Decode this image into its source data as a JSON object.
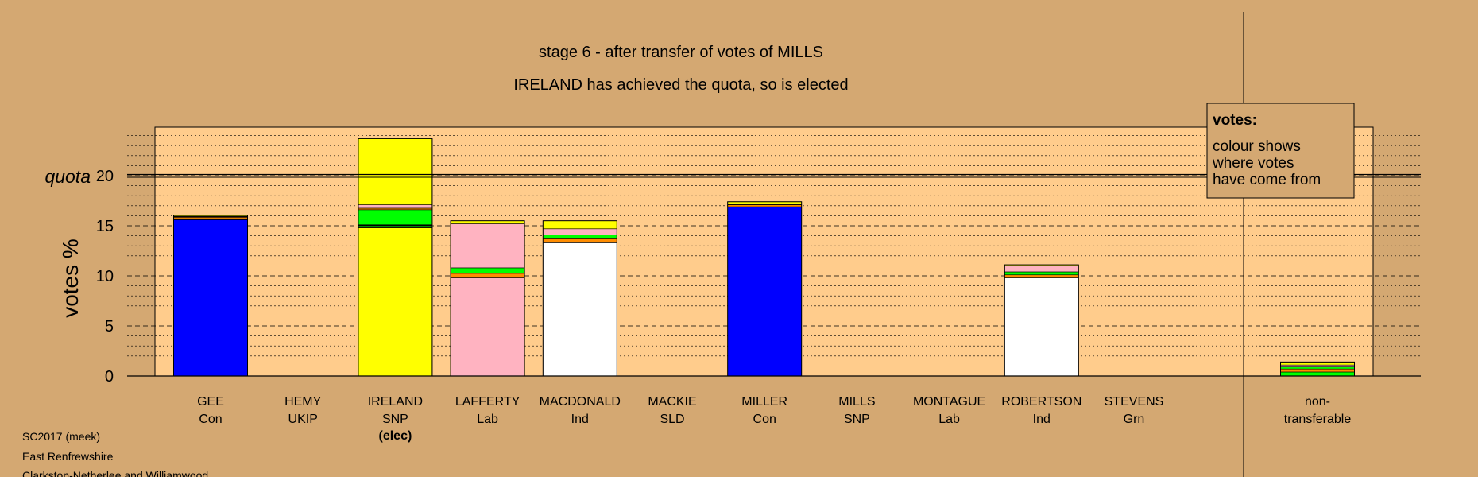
{
  "colors": {
    "background": "#d4a872",
    "plot_background": "#ffcc8c",
    "Con": "#0000ff",
    "SNP": "#ffff00",
    "Lab": "#ffb3c1",
    "Ind": "#ffffff",
    "Grn": "#00ff00",
    "SLD": "#ff8c00",
    "UKIP": "#a020f0",
    "stripe": "#000000"
  },
  "chart_data": {
    "type": "bar",
    "title": "stage 6 - after transfer of votes of MILLS",
    "subtitle": "IRELAND has achieved the quota, so is elected",
    "ylabel": "votes %",
    "ylim": [
      0,
      24
    ],
    "yticks": [
      0,
      5,
      10,
      15,
      20
    ],
    "quota": 20,
    "quota_label": "quota",
    "grid": "dashed every 5, dotted every 1",
    "legend": {
      "title": "votes:",
      "lines": [
        "colour shows",
        "where votes",
        "have come from"
      ],
      "position": "top-right"
    },
    "candidates": [
      {
        "name": "GEE",
        "party": "Con",
        "note": "",
        "segments": [
          {
            "from": "Con",
            "value": 15.6
          },
          {
            "from": "stripe",
            "value": 0.1
          },
          {
            "from": "SLD",
            "value": 0.15
          },
          {
            "from": "stripe",
            "value": 0.1
          },
          {
            "from": "SNP",
            "value": 0.1
          }
        ]
      },
      {
        "name": "HEMY",
        "party": "UKIP",
        "note": "",
        "segments": []
      },
      {
        "name": "IRELAND",
        "party": "SNP",
        "note": "(elec)",
        "segments": [
          {
            "from": "SNP",
            "value": 14.8
          },
          {
            "from": "stripe",
            "value": 0.1
          },
          {
            "from": "Grn",
            "value": 0.1
          },
          {
            "from": "stripe",
            "value": 0.1
          },
          {
            "from": "Grn",
            "value": 1.5
          },
          {
            "from": "SLD",
            "value": 0.15
          },
          {
            "from": "Lab",
            "value": 0.35
          },
          {
            "from": "SNP",
            "value": 6.6
          }
        ]
      },
      {
        "name": "LAFFERTY",
        "party": "Lab",
        "note": "",
        "segments": [
          {
            "from": "Lab",
            "value": 9.8
          },
          {
            "from": "SLD",
            "value": 0.45
          },
          {
            "from": "Grn",
            "value": 0.55
          },
          {
            "from": "Lab",
            "value": 4.4
          },
          {
            "from": "SNP",
            "value": 0.3
          }
        ]
      },
      {
        "name": "MACDONALD",
        "party": "Ind",
        "note": "",
        "segments": [
          {
            "from": "Ind",
            "value": 13.3
          },
          {
            "from": "SLD",
            "value": 0.4
          },
          {
            "from": "Grn",
            "value": 0.4
          },
          {
            "from": "Lab",
            "value": 0.6
          },
          {
            "from": "SNP",
            "value": 0.8
          }
        ]
      },
      {
        "name": "MACKIE",
        "party": "SLD",
        "note": "",
        "segments": []
      },
      {
        "name": "MILLER",
        "party": "Con",
        "note": "",
        "segments": [
          {
            "from": "Con",
            "value": 16.9
          },
          {
            "from": "SLD",
            "value": 0.2
          },
          {
            "from": "stripe",
            "value": 0.1
          },
          {
            "from": "SNP",
            "value": 0.2
          }
        ]
      },
      {
        "name": "MILLS",
        "party": "SNP",
        "note": "",
        "segments": []
      },
      {
        "name": "MONTAGUE",
        "party": "Lab",
        "note": "",
        "segments": []
      },
      {
        "name": "ROBERTSON",
        "party": "Ind",
        "note": "",
        "segments": [
          {
            "from": "Ind",
            "value": 9.8
          },
          {
            "from": "SLD",
            "value": 0.3
          },
          {
            "from": "Grn",
            "value": 0.3
          },
          {
            "from": "Lab",
            "value": 0.6
          },
          {
            "from": "SNP",
            "value": 0.1
          }
        ]
      },
      {
        "name": "STEVENS",
        "party": "Grn",
        "note": "",
        "segments": []
      }
    ],
    "nontransferable": {
      "label_line1": "non-",
      "label_line2": "transferable",
      "segments": [
        {
          "from": "Grn",
          "value": 0.4
        },
        {
          "from": "SLD",
          "value": 0.3
        },
        {
          "from": "Grn",
          "value": 0.2
        },
        {
          "from": "Lab",
          "value": 0.2
        },
        {
          "from": "SNP",
          "value": 0.3
        }
      ]
    }
  },
  "footer": {
    "line1": "SC2017 (meek)",
    "line2": "East Renfrewshire",
    "line3": "Clarkston-Netherlee and Williamwood"
  }
}
